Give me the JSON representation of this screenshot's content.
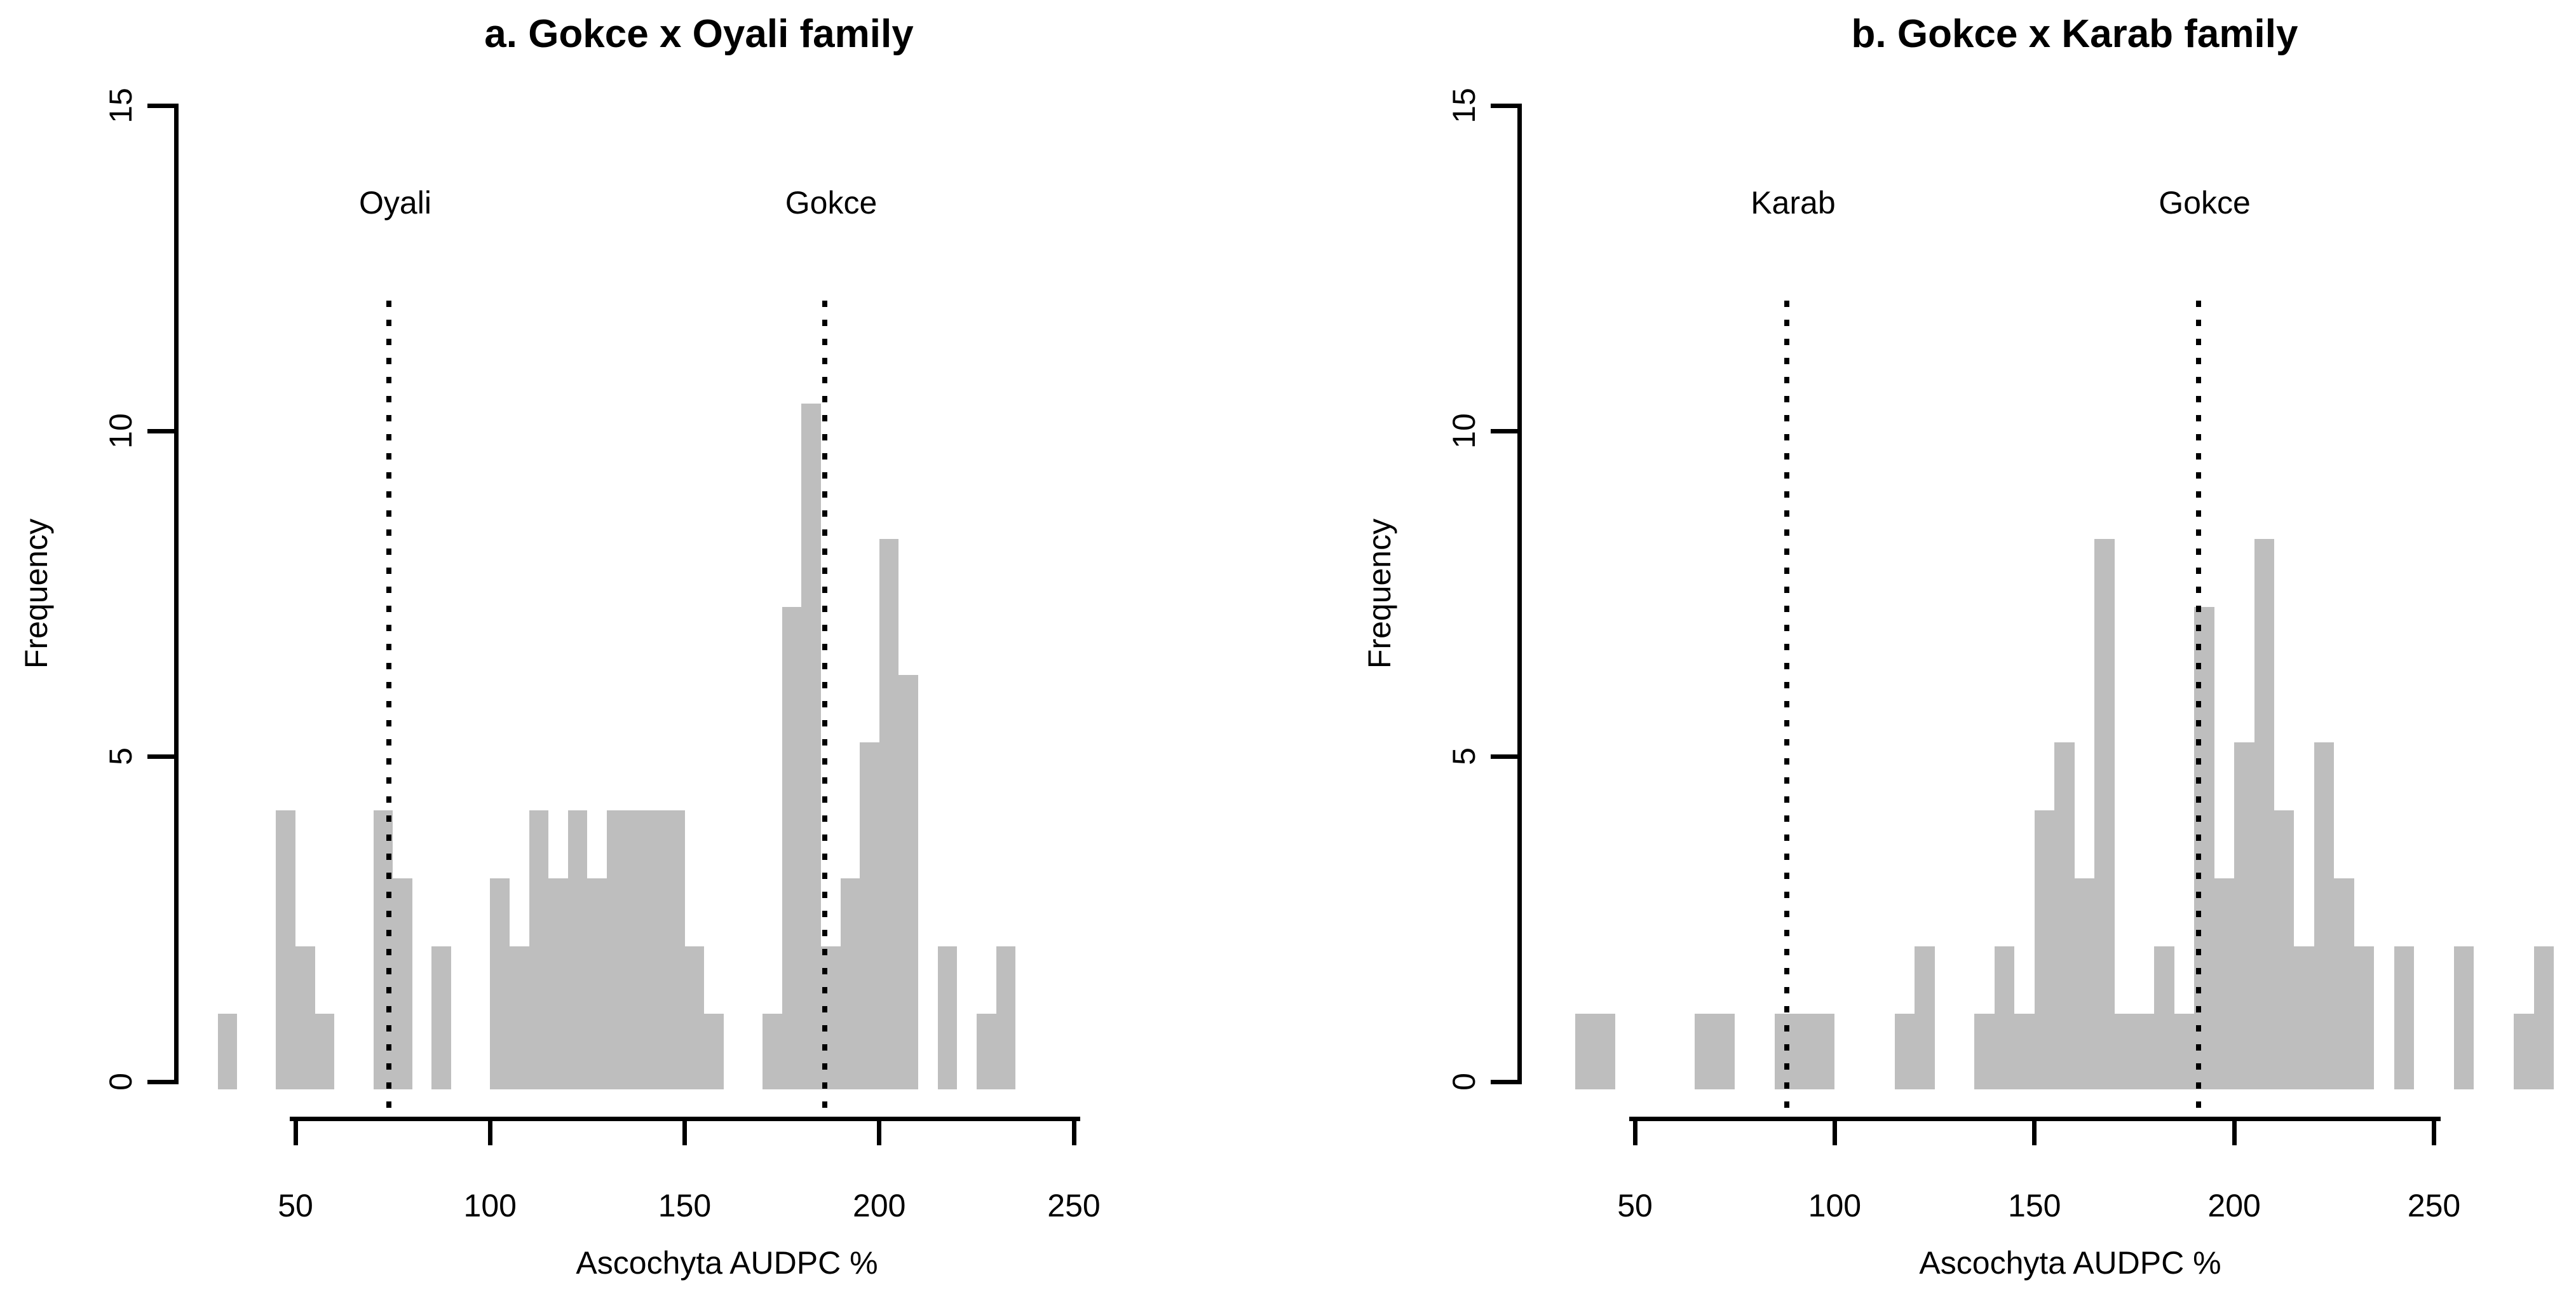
{
  "figure": {
    "background_color": "#ffffff",
    "bar_color": "#bebebe",
    "axis_color": "#000000",
    "text_color": "#000000"
  },
  "chart_data": [
    {
      "type": "bar",
      "subtype": "histogram",
      "title": "a. Gokce x Oyali family",
      "xlabel": "Ascochyta AUDPC %",
      "ylabel": "Frequency",
      "ylim": [
        0,
        15
      ],
      "yticks": [
        0,
        5,
        10,
        15
      ],
      "xticks": [
        50,
        100,
        150,
        200,
        250
      ],
      "grid": false,
      "legend": false,
      "bin_width": 5,
      "bin_starts": [
        30,
        35,
        40,
        45,
        50,
        55,
        60,
        65,
        70,
        75,
        80,
        85,
        90,
        95,
        100,
        105,
        110,
        115,
        120,
        125,
        130,
        135,
        140,
        145,
        150,
        155,
        160,
        165,
        170,
        175,
        180,
        185,
        190,
        195,
        200,
        205,
        210,
        215,
        220,
        225,
        230
      ],
      "counts": [
        1,
        0,
        0,
        4,
        2,
        1,
        0,
        0,
        4,
        3,
        0,
        2,
        0,
        0,
        3,
        2,
        4,
        3,
        4,
        3,
        4,
        4,
        4,
        4,
        2,
        1,
        0,
        0,
        1,
        7,
        10,
        2,
        3,
        5,
        8,
        6,
        0,
        2,
        0,
        1,
        2
      ],
      "height_scale_units_per_count": 1.042,
      "ref_lines": [
        {
          "label": "Oyali",
          "x": 74,
          "top_y": 12,
          "style": "dotted"
        },
        {
          "label": "Gokce",
          "x": 186,
          "top_y": 12,
          "style": "dotted"
        }
      ]
    },
    {
      "type": "bar",
      "subtype": "histogram",
      "title": "b. Gokce x Karab family",
      "xlabel": "Ascochyta AUDPC %",
      "ylabel": "Frequency",
      "ylim": [
        0,
        15
      ],
      "yticks": [
        0,
        5,
        10,
        15
      ],
      "xticks": [
        50,
        100,
        150,
        200,
        250
      ],
      "grid": false,
      "legend": false,
      "bin_width": 5,
      "bin_starts": [
        35,
        40,
        45,
        50,
        55,
        60,
        65,
        70,
        75,
        80,
        85,
        90,
        95,
        100,
        105,
        110,
        115,
        120,
        125,
        130,
        135,
        140,
        145,
        150,
        155,
        160,
        165,
        170,
        175,
        180,
        185,
        190,
        195,
        200,
        205,
        210,
        215,
        220,
        225,
        230,
        235,
        240,
        245,
        250,
        255,
        260,
        265,
        270,
        275
      ],
      "counts": [
        1,
        1,
        0,
        0,
        0,
        0,
        1,
        1,
        0,
        0,
        1,
        1,
        1,
        0,
        0,
        0,
        1,
        2,
        0,
        0,
        1,
        2,
        1,
        4,
        5,
        3,
        8,
        1,
        1,
        2,
        1,
        7,
        3,
        5,
        8,
        4,
        2,
        5,
        3,
        2,
        0,
        2,
        0,
        0,
        2,
        0,
        0,
        1,
        2
      ],
      "height_scale_units_per_count": 1.042,
      "ref_lines": [
        {
          "label": "Karab",
          "x": 88,
          "top_y": 12,
          "style": "dotted"
        },
        {
          "label": "Gokce",
          "x": 191,
          "top_y": 12,
          "style": "dotted"
        }
      ]
    }
  ]
}
